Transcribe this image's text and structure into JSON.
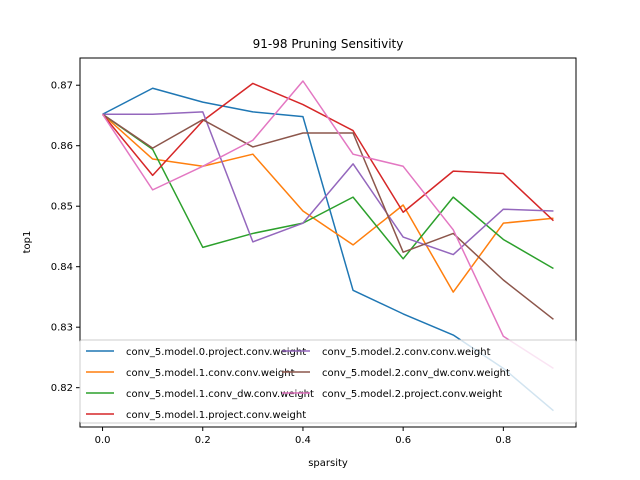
{
  "chart_data": {
    "type": "line",
    "title": "91-98 Pruning Sensitivity",
    "xlabel": "sparsity",
    "ylabel": "top1",
    "xlim": [
      -0.045,
      0.945
    ],
    "ylim": [
      0.8135,
      0.8745
    ],
    "xticks": [
      "0.0",
      "0.2",
      "0.4",
      "0.6",
      "0.8"
    ],
    "yticks": [
      "0.82",
      "0.83",
      "0.84",
      "0.85",
      "0.86",
      "0.87"
    ],
    "grid": false,
    "legend_position": "lower-left",
    "x": [
      0.0,
      0.1,
      0.2,
      0.3,
      0.4,
      0.5,
      0.6,
      0.7,
      0.8,
      0.9
    ],
    "series": [
      {
        "name": "conv_5.model.0.project.conv.weight",
        "color": "#1f77b4",
        "values": [
          0.8652,
          0.8695,
          0.8672,
          0.8656,
          0.8648,
          0.8361,
          0.8322,
          0.8287,
          0.8232,
          0.8162
        ]
      },
      {
        "name": "conv_5.model.1.conv.conv.weight",
        "color": "#ff7f0e",
        "values": [
          0.8652,
          0.8578,
          0.8566,
          0.8586,
          0.8492,
          0.8436,
          0.8502,
          0.8358,
          0.8472,
          0.848
        ]
      },
      {
        "name": "conv_5.model.1.conv_dw.conv.weight",
        "color": "#2ca02c",
        "values": [
          0.8652,
          0.8594,
          0.8432,
          0.8455,
          0.8472,
          0.8515,
          0.8413,
          0.8515,
          0.8445,
          0.8397
        ]
      },
      {
        "name": "conv_5.model.1.project.conv.weight",
        "color": "#d62728",
        "values": [
          0.8652,
          0.8551,
          0.8641,
          0.8703,
          0.8668,
          0.8625,
          0.849,
          0.8558,
          0.8554,
          0.8476
        ]
      },
      {
        "name": "conv_5.model.2.conv.conv.weight",
        "color": "#9467bd",
        "values": [
          0.8652,
          0.8652,
          0.8656,
          0.8441,
          0.8472,
          0.857,
          0.8449,
          0.842,
          0.8495,
          0.8492
        ]
      },
      {
        "name": "conv_5.model.2.conv_dw.conv.weight",
        "color": "#8c564b",
        "values": [
          0.8652,
          0.8596,
          0.8643,
          0.8598,
          0.8621,
          0.8621,
          0.8424,
          0.8455,
          0.8378,
          0.8313
        ]
      },
      {
        "name": "conv_5.model.2.project.conv.weight",
        "color": "#e377c2",
        "values": [
          0.8652,
          0.8527,
          0.8566,
          0.8609,
          0.8707,
          0.8586,
          0.8566,
          0.8461,
          0.8285,
          0.8232
        ]
      }
    ]
  }
}
